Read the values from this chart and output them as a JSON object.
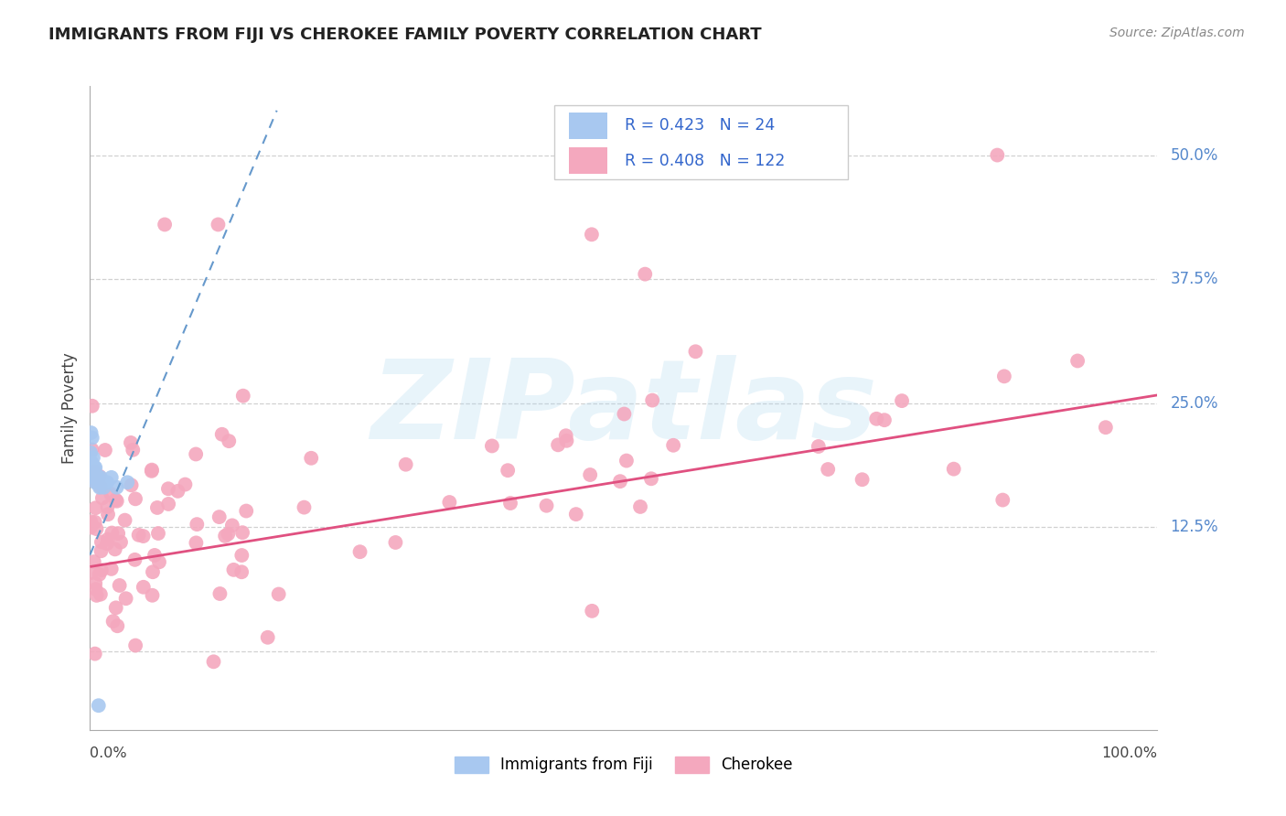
{
  "title": "IMMIGRANTS FROM FIJI VS CHEROKEE FAMILY POVERTY CORRELATION CHART",
  "source": "Source: ZipAtlas.com",
  "ylabel": "Family Poverty",
  "fiji_R": 0.423,
  "fiji_N": 24,
  "cherokee_R": 0.408,
  "cherokee_N": 122,
  "fiji_color": "#a8c8f0",
  "fiji_line_color": "#6699cc",
  "cherokee_color": "#f4a8be",
  "cherokee_line_color": "#e05080",
  "legend_fiji_label": "Immigrants from Fiji",
  "legend_cherokee_label": "Cherokee",
  "background_color": "#ffffff",
  "grid_color": "#cccccc",
  "ytick_positions": [
    0.0,
    0.125,
    0.25,
    0.375,
    0.5
  ],
  "ytick_labels": [
    "",
    "12.5%",
    "25.0%",
    "37.5%",
    "50.0%"
  ],
  "right_label_color": "#5588cc",
  "title_color": "#222222",
  "source_color": "#888888",
  "watermark": "ZIPatlas",
  "xlim": [
    0.0,
    1.0
  ],
  "ylim": [
    -0.08,
    0.57
  ],
  "cherokee_line_x0": 0.0,
  "cherokee_line_y0": 0.085,
  "cherokee_line_x1": 1.0,
  "cherokee_line_y1": 0.258,
  "fiji_line_x0": 0.0,
  "fiji_line_y0": 0.097,
  "fiji_line_x1": 0.175,
  "fiji_line_y1": 0.545
}
